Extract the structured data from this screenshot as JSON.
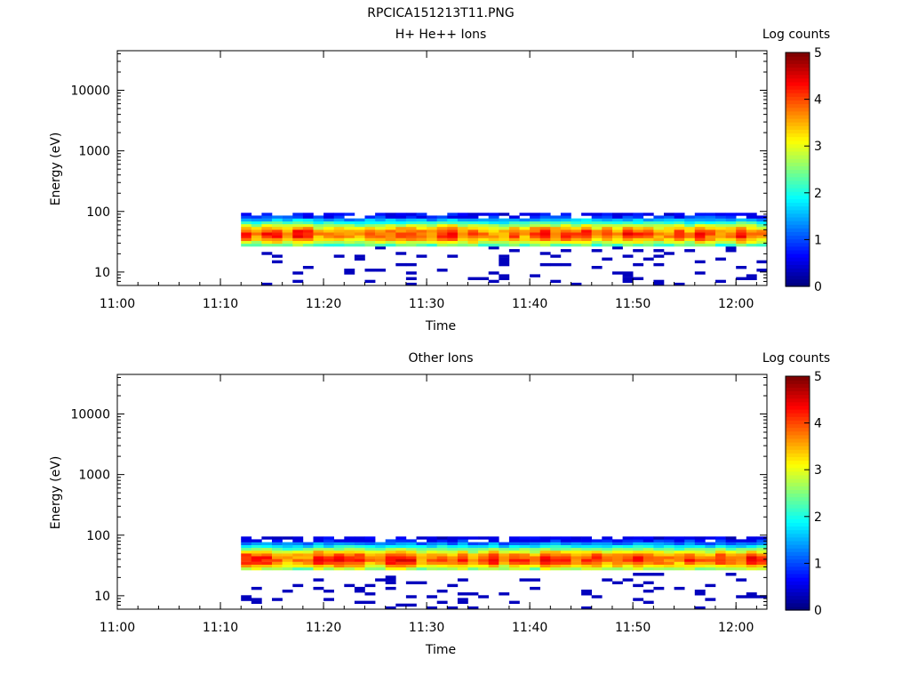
{
  "title": "RPCICA151213T11.PNG",
  "chart_data": [
    {
      "type": "heatmap",
      "title": "H+ He++ Ions",
      "xlabel": "Time",
      "ylabel": "Energy (eV)",
      "yscale": "log",
      "xlim": [
        "11:00",
        "12:03"
      ],
      "ylim": [
        6,
        45000
      ],
      "xticks": [
        "11:00",
        "11:10",
        "11:20",
        "11:30",
        "11:40",
        "11:50",
        "12:00"
      ],
      "yticks": [
        "10",
        "100",
        "1000",
        "10000"
      ],
      "data_start": "11:12",
      "data_end": "12:03",
      "energy_range_eV": [
        6,
        95
      ],
      "peak_energy_eV": 42,
      "colorbar": {
        "label": "Log counts",
        "range": [
          0,
          5
        ],
        "ticks": [
          "0",
          "1",
          "2",
          "3",
          "4",
          "5"
        ],
        "colormap": "jet"
      }
    },
    {
      "type": "heatmap",
      "title": "Other Ions",
      "xlabel": "Time",
      "ylabel": "Energy (eV)",
      "yscale": "log",
      "xlim": [
        "11:00",
        "12:03"
      ],
      "ylim": [
        6,
        45000
      ],
      "xticks": [
        "11:00",
        "11:10",
        "11:20",
        "11:30",
        "11:40",
        "11:50",
        "12:00"
      ],
      "yticks": [
        "10",
        "100",
        "1000",
        "10000"
      ],
      "data_start": "11:12",
      "data_end": "12:03",
      "energy_range_eV": [
        6,
        95
      ],
      "peak_energy_eV": 40,
      "colorbar": {
        "label": "Log counts",
        "range": [
          0,
          5
        ],
        "ticks": [
          "0",
          "1",
          "2",
          "3",
          "4",
          "5"
        ],
        "colormap": "jet"
      }
    }
  ]
}
